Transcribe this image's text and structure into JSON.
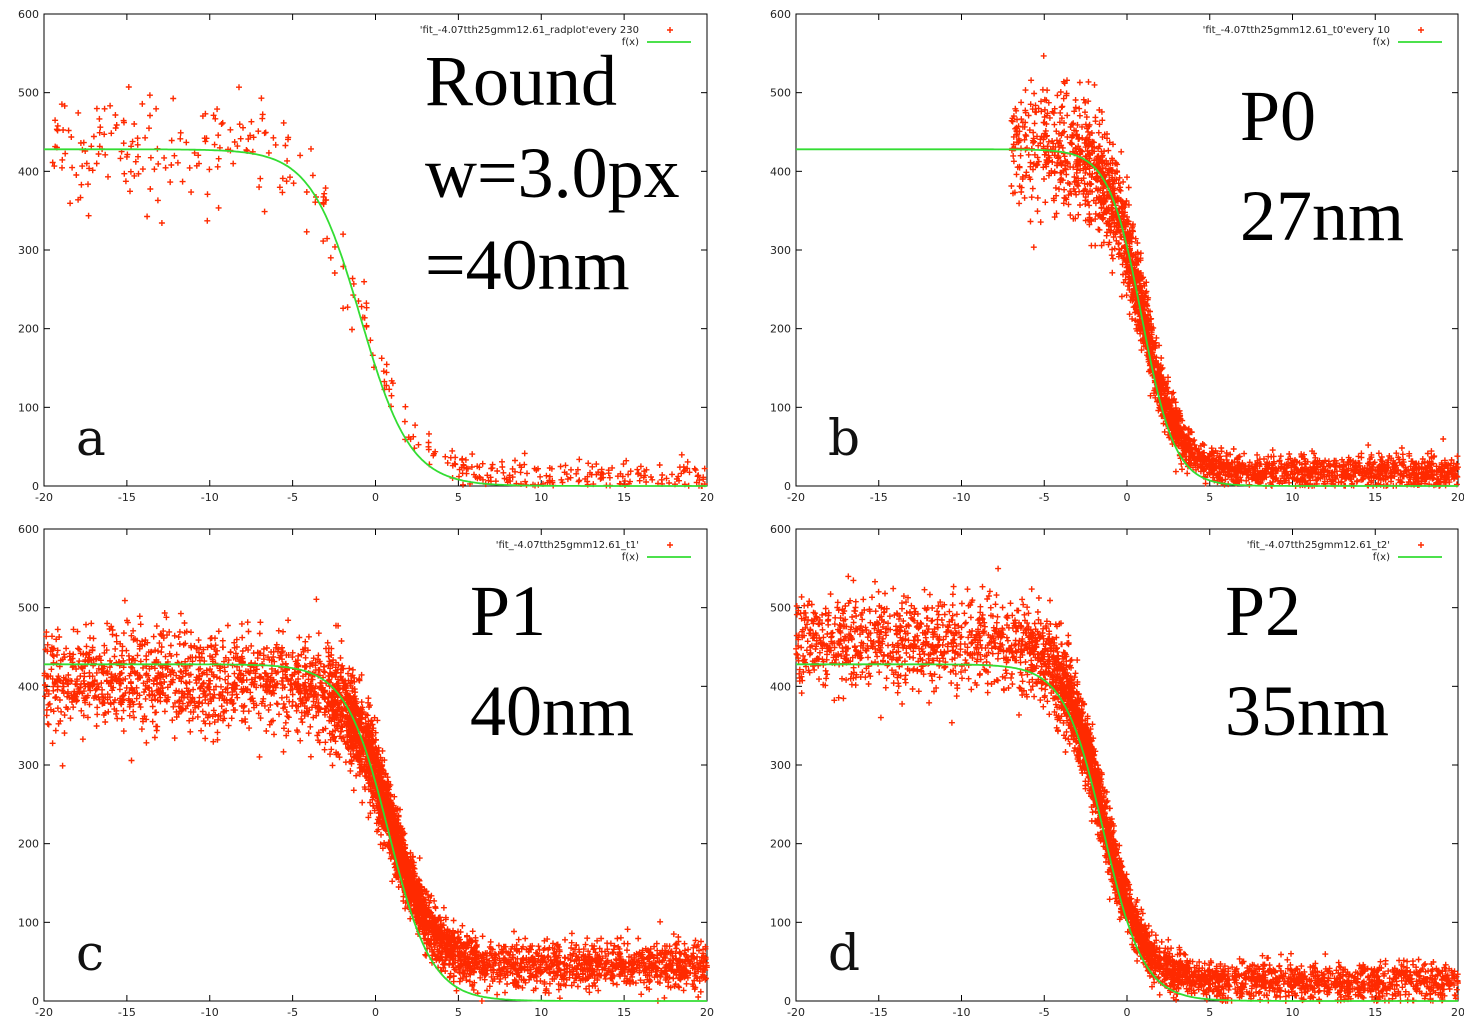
{
  "chart_data": [
    {
      "type": "scatter",
      "panel_label": "a",
      "annotation": [
        "Round",
        "w=3.0px",
        "=40nm"
      ],
      "legend": [
        "'fit_-4.07tth25gmm12.61_radplot'every 230",
        "f(x)"
      ],
      "xlim": [
        -20,
        20
      ],
      "ylim": [
        0,
        600
      ],
      "xticks": [
        -20,
        -15,
        -10,
        -5,
        0,
        5,
        10,
        15,
        20
      ],
      "yticks": [
        0,
        100,
        200,
        300,
        400,
        500,
        600
      ],
      "grid": false,
      "legend_position": "top-right",
      "series": [
        {
          "kind": "points",
          "color": "#ff2a00",
          "density": "sparse",
          "x_range": [
            -19.5,
            20
          ],
          "plateau": 430,
          "plateau_noise": 38,
          "tail": 12,
          "tail_noise": 10,
          "transition_center": -0.9,
          "transition_width": 1.7,
          "count": 420
        },
        {
          "kind": "fit",
          "color": "#33dd33",
          "plateau": 428,
          "center": -0.9,
          "width": 1.5
        }
      ]
    },
    {
      "type": "scatter",
      "panel_label": "b",
      "annotation": [
        "P0",
        "27nm"
      ],
      "legend": [
        "'fit_-4.07tth25gmm12.61_t0'every 10",
        "f(x)"
      ],
      "xlim": [
        -20,
        20
      ],
      "ylim": [
        0,
        600
      ],
      "xticks": [
        -20,
        -15,
        -10,
        -5,
        0,
        5,
        10,
        15,
        20
      ],
      "yticks": [
        0,
        100,
        200,
        300,
        400,
        500,
        600
      ],
      "grid": false,
      "legend_position": "top-right",
      "series": [
        {
          "kind": "points",
          "color": "#ff2a00",
          "density": "dense",
          "x_range": [
            -7,
            20
          ],
          "plateau": 430,
          "plateau_noise": 40,
          "tail": 18,
          "tail_noise": 10,
          "transition_center": 0.9,
          "transition_width": 1.1,
          "count": 2600
        },
        {
          "kind": "fit",
          "color": "#33dd33",
          "plateau": 428,
          "center": 0.9,
          "width": 1.0
        }
      ]
    },
    {
      "type": "scatter",
      "panel_label": "c",
      "annotation": [
        "P1",
        "40nm"
      ],
      "legend": [
        "'fit_-4.07tth25gmm12.61_t1'",
        "f(x)"
      ],
      "xlim": [
        -20,
        20
      ],
      "ylim": [
        0,
        600
      ],
      "xticks": [
        -20,
        -15,
        -10,
        -5,
        0,
        5,
        10,
        15,
        20
      ],
      "yticks": [
        0,
        100,
        200,
        300,
        400,
        500,
        600
      ],
      "grid": false,
      "legend_position": "top-right",
      "series": [
        {
          "kind": "points",
          "color": "#ff2a00",
          "density": "dense",
          "x_range": [
            -20,
            20
          ],
          "plateau": 410,
          "plateau_noise": 32,
          "tail": 45,
          "tail_noise": 15,
          "transition_center": 0.9,
          "transition_width": 1.3,
          "count": 4200
        },
        {
          "kind": "fit",
          "color": "#33dd33",
          "plateau": 428,
          "center": 0.8,
          "width": 1.3
        }
      ]
    },
    {
      "type": "scatter",
      "panel_label": "d",
      "annotation": [
        "P2",
        "35nm"
      ],
      "legend": [
        "'fit_-4.07tth25gmm12.61_t2'",
        "f(x)"
      ],
      "xlim": [
        -20,
        20
      ],
      "ylim": [
        0,
        600
      ],
      "xticks": [
        -20,
        -15,
        -10,
        -5,
        0,
        5,
        10,
        15,
        20
      ],
      "yticks": [
        0,
        100,
        200,
        300,
        400,
        500,
        600
      ],
      "grid": false,
      "legend_position": "top-right",
      "series": [
        {
          "kind": "points",
          "color": "#ff2a00",
          "density": "dense",
          "x_range": [
            -20,
            20
          ],
          "plateau": 455,
          "plateau_noise": 30,
          "tail": 25,
          "tail_noise": 12,
          "transition_center": -1.5,
          "transition_width": 1.2,
          "count": 3800
        },
        {
          "kind": "fit",
          "color": "#33dd33",
          "plateau": 428,
          "center": -1.4,
          "width": 1.2
        }
      ]
    }
  ]
}
